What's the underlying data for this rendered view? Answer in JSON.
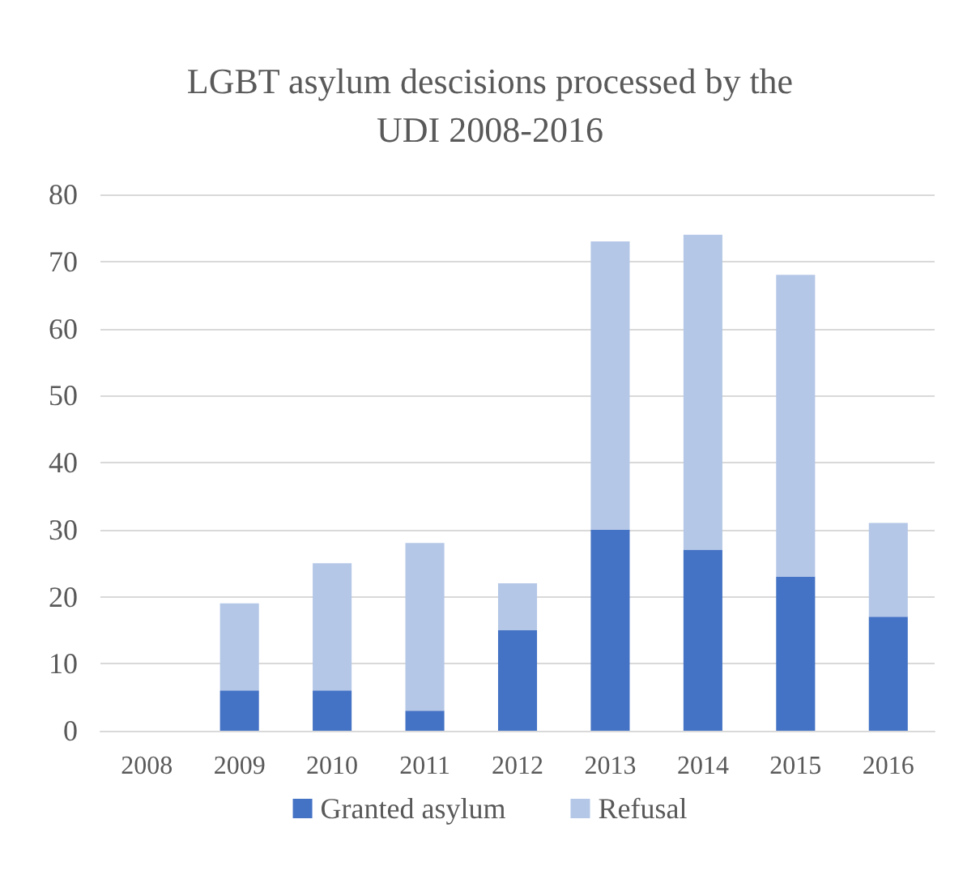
{
  "chart_data": {
    "type": "bar",
    "title": "LGBT asylum descisions processed by the\nUDI 2008-2016",
    "categories": [
      "2008",
      "2009",
      "2010",
      "2011",
      "2012",
      "2013",
      "2014",
      "2015",
      "2016"
    ],
    "series": [
      {
        "name": "Granted asylum",
        "color": "#4472c4",
        "values": [
          0,
          6,
          6,
          3,
          15,
          30,
          27,
          23,
          17
        ]
      },
      {
        "name": "Refusal",
        "color": "#b4c7e7",
        "values": [
          0,
          13,
          19,
          25,
          7,
          43,
          47,
          45,
          14
        ]
      }
    ],
    "stacked": true,
    "ylim": [
      0,
      80
    ],
    "yticks": [
      0,
      10,
      20,
      30,
      40,
      50,
      60,
      70,
      80
    ],
    "grid": "y",
    "legend": "bottom"
  }
}
